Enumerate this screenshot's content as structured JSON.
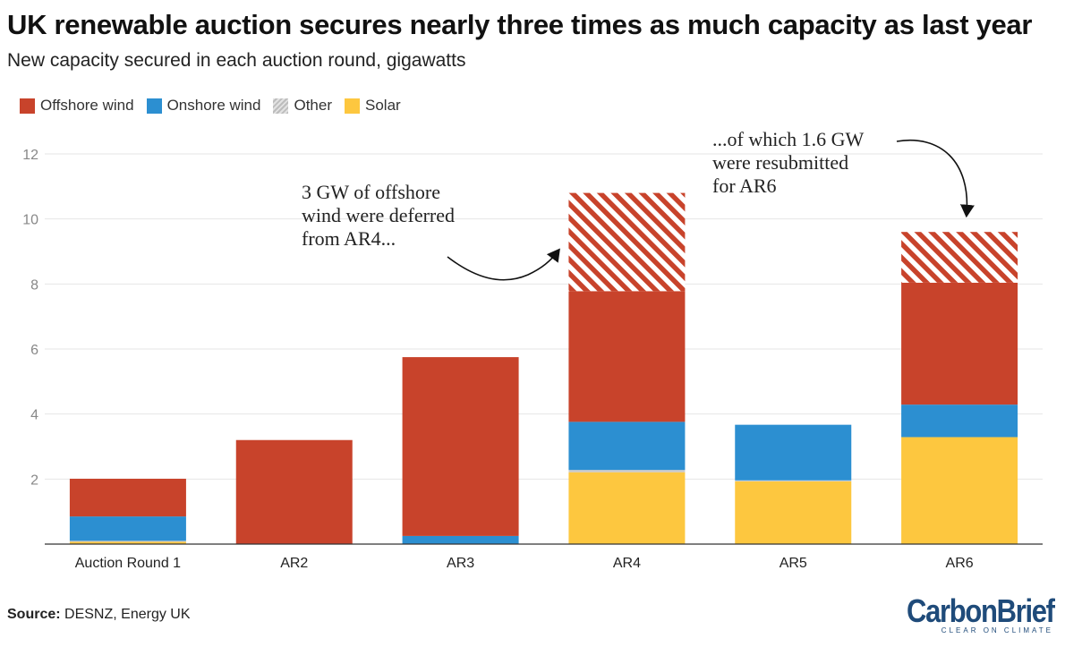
{
  "title": "UK renewable auction secures nearly three times as much capacity as last year",
  "subtitle": "New capacity secured in each auction round, gigawatts",
  "legend": [
    {
      "label": "Offshore wind",
      "color": "#c8432b"
    },
    {
      "label": "Onshore wind",
      "color": "#2c8fd1"
    },
    {
      "label": "Other",
      "color": "#c9c9c9"
    },
    {
      "label": "Solar",
      "color": "#fdc73f"
    }
  ],
  "annotations": {
    "deferred": "3 GW of offshore\nwind were deferred\nfrom AR4...",
    "resubmitted": "...of which 1.6 GW\nwere resubmitted\nfor AR6"
  },
  "source": {
    "label": "Source:",
    "text": "DESNZ, Energy UK"
  },
  "logo": {
    "name": "CarbonBrief",
    "tagline": "CLEAR ON CLIMATE"
  },
  "chart_data": {
    "type": "bar",
    "stacked": true,
    "categories": [
      "Auction Round 1",
      "AR2",
      "AR3",
      "AR4",
      "AR5",
      "AR6"
    ],
    "ylim": [
      0,
      12
    ],
    "yticks": [
      2,
      4,
      6,
      8,
      10,
      12
    ],
    "grid": true,
    "legend_position": "top-left",
    "series": [
      {
        "name": "Solar",
        "color": "#fdc73f",
        "values": [
          0.07,
          0,
          0,
          2.21,
          1.93,
          3.29
        ]
      },
      {
        "name": "Other",
        "color": "#c9c9c9",
        "values": [
          0.03,
          0,
          0,
          0.07,
          0.03,
          0
        ]
      },
      {
        "name": "Onshore wind",
        "color": "#2c8fd1",
        "values": [
          0.75,
          0,
          0.25,
          1.48,
          1.71,
          1.0
        ]
      },
      {
        "name": "Offshore wind",
        "color": "#c8432b",
        "values": [
          1.16,
          3.2,
          5.5,
          4.02,
          0,
          3.75
        ]
      },
      {
        "name": "Offshore wind (deferred / resubmitted)",
        "color": "#c8432b",
        "hatched": true,
        "values": [
          0,
          0,
          0,
          3.02,
          0,
          1.56
        ]
      }
    ]
  }
}
